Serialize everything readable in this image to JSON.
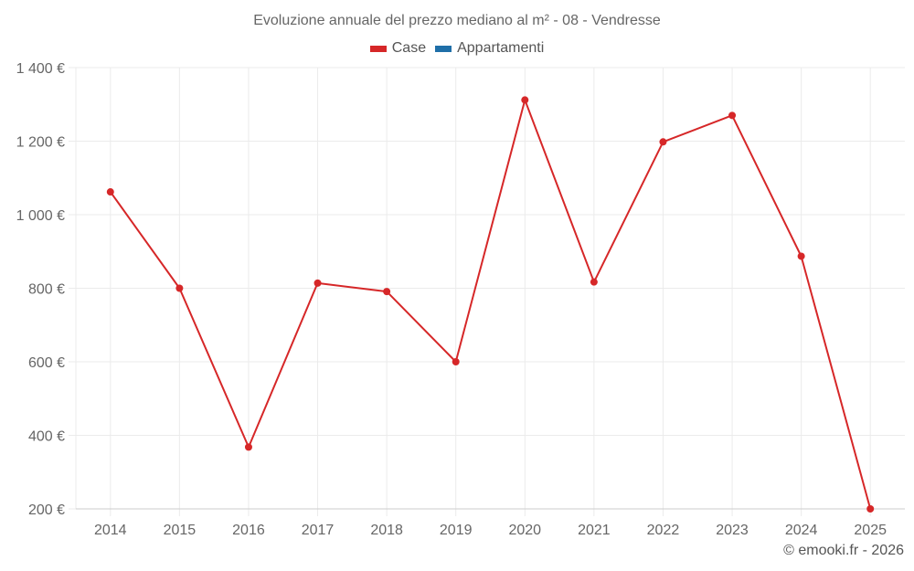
{
  "header": {
    "title": "Evoluzione annuale del prezzo mediano al m² - 08 - Vendresse"
  },
  "legend": [
    {
      "label": "Case",
      "color": "#d62728"
    },
    {
      "label": "Appartamenti",
      "color": "#1f6fa8"
    }
  ],
  "footer": {
    "credit": "© emooki.fr - 2026"
  },
  "colors": {
    "grid": "#ebebeb",
    "axis": "#cccccc",
    "series_case": "#d62728"
  },
  "chart_data": {
    "type": "line",
    "title": "Evoluzione annuale del prezzo mediano al m² - 08 - Vendresse",
    "xlabel": "",
    "ylabel": "",
    "categories": [
      "2014",
      "2015",
      "2016",
      "2017",
      "2018",
      "2019",
      "2020",
      "2021",
      "2022",
      "2023",
      "2024",
      "2025"
    ],
    "series": [
      {
        "name": "Case",
        "color": "#d62728",
        "values": [
          1062,
          800,
          368,
          814,
          791,
          600,
          1312,
          817,
          1198,
          1270,
          887,
          200
        ]
      },
      {
        "name": "Appartamenti",
        "color": "#1f6fa8",
        "values": []
      }
    ],
    "ylim": [
      200,
      1400
    ],
    "yticks": [
      200,
      400,
      600,
      800,
      1000,
      1200,
      1400
    ],
    "ytick_labels": [
      "200 €",
      "400 €",
      "600 €",
      "800 €",
      "1 000 €",
      "1 200 €",
      "1 400 €"
    ],
    "grid": true,
    "legend_position": "top"
  }
}
